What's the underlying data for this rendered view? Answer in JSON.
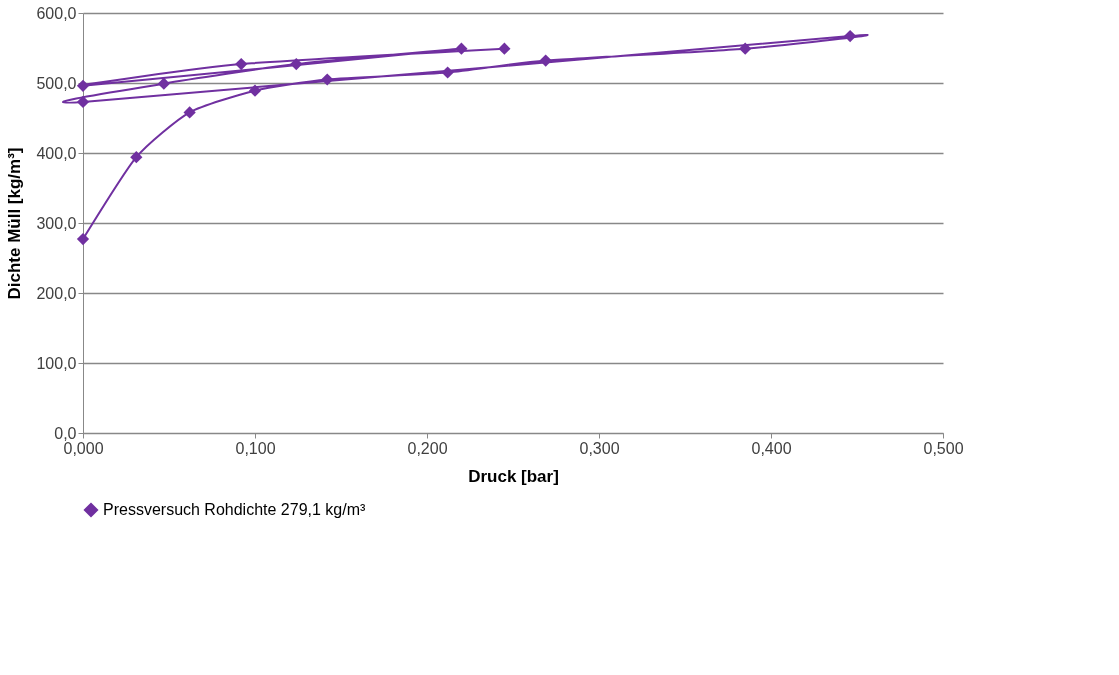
{
  "chart_data": {
    "type": "line",
    "xlabel": "Druck [bar]",
    "ylabel": "Dichte Müll [kg/m³]",
    "x": [
      0.0,
      0.031,
      0.062,
      0.1,
      0.142,
      0.212,
      0.269,
      0.385,
      0.446,
      0.0,
      0.047,
      0.124,
      0.22,
      0.0,
      0.092,
      0.245
    ],
    "series": [
      {
        "name": "Pressversuch Rohdichte 279,1 kg/m³",
        "color": "#7030a0",
        "values": [
          277,
          394,
          458,
          489,
          505,
          515,
          532,
          549,
          567,
          473,
          499,
          527,
          549,
          496,
          527,
          549
        ]
      }
    ],
    "xlim": [
      0,
      0.5
    ],
    "xticks": [
      {
        "value": 0,
        "label": "0,000"
      },
      {
        "value": 0.1,
        "label": "0,100"
      },
      {
        "value": 0.2,
        "label": "0,200"
      },
      {
        "value": 0.3,
        "label": "0,300"
      },
      {
        "value": 0.4,
        "label": "0,400"
      },
      {
        "value": 0.5,
        "label": "0,500"
      }
    ],
    "ylim": [
      0,
      600
    ],
    "yticks": [
      {
        "value": 0,
        "label": "0,0"
      },
      {
        "value": 100,
        "label": "100,0"
      },
      {
        "value": 200,
        "label": "200,0"
      },
      {
        "value": 300,
        "label": "300,0"
      },
      {
        "value": 400,
        "label": "400,0"
      },
      {
        "value": 500,
        "label": "500,0"
      },
      {
        "value": 600,
        "label": "600,0"
      }
    ],
    "grid": "y",
    "legend": "bottom",
    "marker": "diamond",
    "line_style": "solid"
  }
}
